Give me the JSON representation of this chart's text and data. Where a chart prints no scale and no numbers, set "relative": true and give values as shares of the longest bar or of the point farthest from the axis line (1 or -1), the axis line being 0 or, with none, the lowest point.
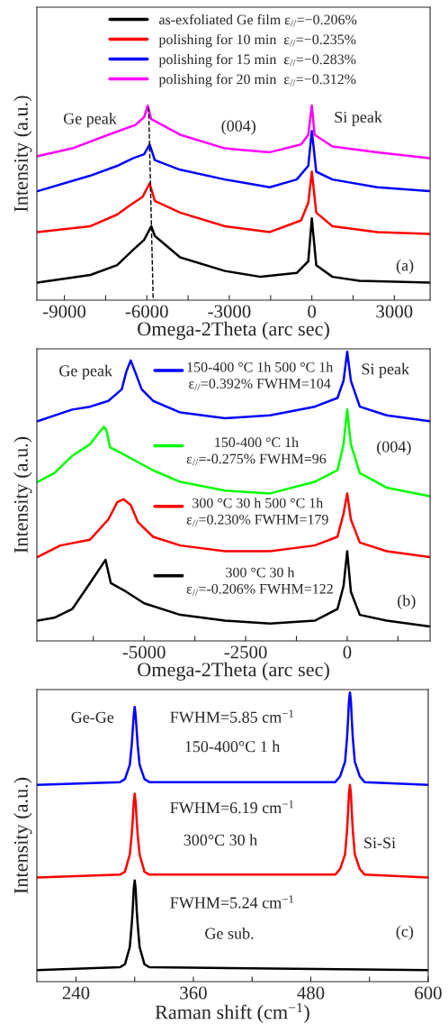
{
  "chart_data": [
    {
      "type": "line",
      "relative": true,
      "xlabel": "Omega-2Theta (arc sec)",
      "ylabel": "Intensity (a.u.)",
      "xlim": [
        -10000,
        4300
      ],
      "xticks": [
        -9000,
        {
          "value": -7500,
          "label": null
        },
        -6000,
        {
          "value": -4500,
          "label": null
        },
        -3000,
        {
          "value": -1500,
          "label": null
        },
        0,
        {
          "value": 1500,
          "label": null
        },
        3000
      ],
      "legend": "top",
      "grid": false,
      "annotations": [
        "Ge peak",
        "(004)",
        "Si peak",
        "(a)"
      ],
      "series": [
        {
          "name": "as-exfoliated Ge film ε$_{//}$=−0.206%",
          "color": "#000000",
          "x": [
            -9980,
            -8050,
            -7080,
            -6490,
            -6100,
            -5840,
            -5710,
            -4790,
            -3160,
            -1860,
            -550,
            -130,
            0,
            160,
            750,
            1730,
            4270
          ],
          "values": [
            0.09,
            0.13,
            0.18,
            0.26,
            0.31,
            0.38,
            0.33,
            0.22,
            0.15,
            0.12,
            0.14,
            0.2,
            0.42,
            0.18,
            0.12,
            0.1,
            0.09
          ]
        },
        {
          "name": "polishing for 10 min  ε$_{//}$=−0.235%",
          "color": "#ff0000",
          "x": [
            -9980,
            -8050,
            -7080,
            -6590,
            -6160,
            -5900,
            -5710,
            -4790,
            -3160,
            -1530,
            -390,
            -130,
            0,
            160,
            750,
            2380,
            4270
          ],
          "values": [
            0.35,
            0.38,
            0.44,
            0.49,
            0.53,
            0.6,
            0.51,
            0.45,
            0.38,
            0.35,
            0.41,
            0.5,
            0.66,
            0.45,
            0.38,
            0.35,
            0.34
          ]
        },
        {
          "name": "polishing for 15 min  ε$_{//}$=−0.283%",
          "color": "#0000ff",
          "x": [
            -9980,
            -8050,
            -7080,
            -6490,
            -6100,
            -5900,
            -5710,
            -4790,
            -3160,
            -1530,
            -550,
            -130,
            0,
            160,
            750,
            2380,
            4270
          ],
          "values": [
            0.56,
            0.64,
            0.69,
            0.73,
            0.75,
            0.8,
            0.72,
            0.67,
            0.62,
            0.58,
            0.62,
            0.69,
            0.87,
            0.66,
            0.62,
            0.58,
            0.56
          ]
        },
        {
          "name": "polishing for 20 min  ε$_{//}$=−0.312%",
          "color": "#ff00ff",
          "x": [
            -9980,
            -8710,
            -7400,
            -6420,
            -6100,
            -5970,
            -5840,
            -4790,
            -3160,
            -1530,
            -390,
            -130,
            0,
            100,
            750,
            2380,
            4270
          ],
          "values": [
            0.74,
            0.78,
            0.85,
            0.9,
            0.94,
            1.0,
            0.93,
            0.85,
            0.78,
            0.76,
            0.8,
            0.85,
            1.0,
            0.85,
            0.79,
            0.76,
            0.73
          ]
        },
        {
          "color": "#000000",
          "line_style": "dashed",
          "x": [
            -5935,
            -5770
          ],
          "values": [
            0.99,
            0
          ]
        }
      ]
    },
    {
      "type": "line",
      "relative": true,
      "xlabel": "Omega-2Theta (arc sec)",
      "ylabel": "Intensity (a.u.)",
      "xlim": [
        -7640,
        2040
      ],
      "xticks": [
        {
          "value": -6250,
          "label": null
        },
        -5000,
        {
          "value": -3750,
          "label": null
        },
        -2500,
        {
          "value": -1250,
          "label": null
        },
        0,
        {
          "value": 1250,
          "label": null
        }
      ],
      "grid": false,
      "legend": "center",
      "annotations": [
        "Ge peak",
        "Si peak",
        "(004)",
        "(b)"
      ],
      "series": [
        {
          "name": "300 °C 30 h\nε$_{//}$=-0.206% FWHM=122",
          "color": "#000000",
          "x": [
            -7620,
            -7210,
            -6770,
            -6330,
            -5950,
            -5820,
            -5440,
            -5000,
            -4110,
            -3010,
            -1900,
            -800,
            -240,
            -90,
            0,
            90,
            310,
            970,
            2030
          ],
          "values": [
            0.07,
            0.08,
            0.11,
            0.2,
            0.28,
            0.2,
            0.17,
            0.13,
            0.09,
            0.07,
            0.06,
            0.07,
            0.11,
            0.19,
            0.31,
            0.17,
            0.09,
            0.07,
            0.05
          ]
        },
        {
          "name": "300 °C 30 h 500 °C 1h\nε$_{//}$=0.230% FWHM=179",
          "color": "#ff0000",
          "x": [
            -7620,
            -7060,
            -6330,
            -5880,
            -5660,
            -5510,
            -5330,
            -5150,
            -4780,
            -4110,
            -3010,
            -1900,
            -800,
            -240,
            -90,
            0,
            90,
            310,
            970,
            2030
          ],
          "values": [
            0.29,
            0.33,
            0.35,
            0.42,
            0.48,
            0.49,
            0.47,
            0.41,
            0.36,
            0.33,
            0.31,
            0.31,
            0.33,
            0.36,
            0.44,
            0.51,
            0.42,
            0.34,
            0.31,
            0.29
          ]
        },
        {
          "name": "150-400 °C 1h\nε$_{//}$=-0.275% FWHM=96",
          "color": "#00ff00",
          "x": [
            -7620,
            -7210,
            -6770,
            -6330,
            -6110,
            -5990,
            -5930,
            -5840,
            -5440,
            -4780,
            -4110,
            -3010,
            -1900,
            -800,
            -240,
            -90,
            0,
            90,
            310,
            970,
            2030
          ],
          "values": [
            0.55,
            0.58,
            0.64,
            0.68,
            0.72,
            0.74,
            0.73,
            0.67,
            0.64,
            0.59,
            0.55,
            0.52,
            0.51,
            0.55,
            0.59,
            0.68,
            0.8,
            0.68,
            0.58,
            0.53,
            0.5
          ]
        },
        {
          "name": "150-400 °C 1h 500 °C 1h\nε$_{//}$=0.392% FWHM=104",
          "color": "#0000ff",
          "x": [
            -7620,
            -6770,
            -6330,
            -5880,
            -5550,
            -5440,
            -5330,
            -5220,
            -5060,
            -4780,
            -4110,
            -3010,
            -1900,
            -800,
            -240,
            -90,
            0,
            90,
            310,
            970,
            2030
          ],
          "values": [
            0.76,
            0.8,
            0.81,
            0.83,
            0.87,
            0.93,
            0.97,
            0.93,
            0.87,
            0.83,
            0.79,
            0.77,
            0.78,
            0.81,
            0.84,
            0.9,
            1.0,
            0.9,
            0.81,
            0.78,
            0.76
          ]
        }
      ]
    },
    {
      "type": "line",
      "relative": true,
      "xlabel": "Raman shift (cm$^{−1}$)",
      "ylabel": "Intensity (a.u.)",
      "xlim": [
        200,
        600
      ],
      "xticks": [
        240,
        {
          "value": 300,
          "label": null
        },
        360,
        {
          "value": 420,
          "label": null
        },
        480,
        {
          "value": 540,
          "label": null
        },
        600
      ],
      "grid": false,
      "annotations": [
        "Ge-Ge",
        "FWHM=5.85 cm$^{−1}$",
        "150-400°C 1 h",
        "FWHM=6.19 cm$^{−1}$",
        "300°C 30 h",
        "Si-Si",
        "FWHM=5.24 cm$^{−1}$",
        "Ge sub.",
        "(c)"
      ],
      "series": [
        {
          "color": "#0000ff",
          "x": [
            200,
            285,
            290,
            295,
            297,
            298,
            299,
            300,
            301,
            302,
            303,
            305,
            310,
            315,
            505,
            510,
            515,
            517,
            518,
            519,
            520,
            521,
            522,
            523,
            525,
            530,
            535,
            600
          ],
          "values": [
            0.68,
            0.69,
            0.7,
            0.75,
            0.82,
            0.87,
            0.92,
            0.95,
            0.92,
            0.87,
            0.82,
            0.75,
            0.7,
            0.69,
            0.69,
            0.71,
            0.76,
            0.84,
            0.9,
            0.97,
            1.0,
            0.97,
            0.9,
            0.84,
            0.76,
            0.71,
            0.69,
            0.68
          ]
        },
        {
          "color": "#ff0000",
          "x": [
            200,
            285,
            290,
            295,
            297,
            298,
            299,
            300,
            301,
            302,
            303,
            305,
            310,
            315,
            505,
            510,
            515,
            517,
            518,
            519,
            520,
            521,
            522,
            523,
            525,
            530,
            535,
            600
          ],
          "values": [
            0.36,
            0.37,
            0.38,
            0.44,
            0.51,
            0.56,
            0.62,
            0.65,
            0.62,
            0.56,
            0.51,
            0.44,
            0.38,
            0.37,
            0.37,
            0.39,
            0.44,
            0.52,
            0.58,
            0.65,
            0.68,
            0.65,
            0.58,
            0.52,
            0.44,
            0.39,
            0.37,
            0.36
          ]
        },
        {
          "color": "#000000",
          "x": [
            200,
            285,
            290,
            295,
            297,
            298,
            299,
            300,
            301,
            302,
            303,
            305,
            310,
            315,
            600
          ],
          "values": [
            0.04,
            0.05,
            0.06,
            0.12,
            0.2,
            0.25,
            0.32,
            0.35,
            0.32,
            0.25,
            0.2,
            0.12,
            0.06,
            0.05,
            0.04
          ]
        }
      ]
    }
  ]
}
